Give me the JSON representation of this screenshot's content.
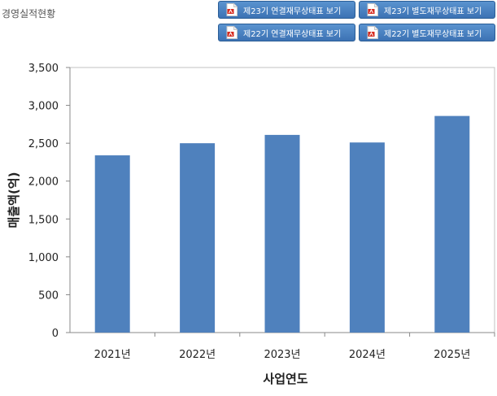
{
  "page": {
    "title": "경영실적현황"
  },
  "buttons": [
    {
      "label": "제23기 연결재무상태표 보기",
      "icon": "pdf-icon"
    },
    {
      "label": "제23기 별도재무상태표 보기",
      "icon": "pdf-icon"
    },
    {
      "label": "제22기 연결재무상태표 보기",
      "icon": "pdf-icon"
    },
    {
      "label": "제22기 별도재무상태표 보기",
      "icon": "pdf-icon"
    }
  ],
  "colors": {
    "bar": "#4f81bd",
    "button": "#4a84c4"
  },
  "chart_data": {
    "type": "bar",
    "categories": [
      "2021년",
      "2022년",
      "2023년",
      "2024년",
      "2025년"
    ],
    "values": [
      2340,
      2500,
      2610,
      2510,
      2860
    ],
    "xlabel": "사업연도",
    "ylabel": "매출액(억)",
    "ylim": [
      0,
      3500
    ],
    "yticks": [
      "0",
      "500",
      "1,000",
      "1,500",
      "2,000",
      "2,500",
      "3,000",
      "3,500"
    ],
    "grid": false
  }
}
